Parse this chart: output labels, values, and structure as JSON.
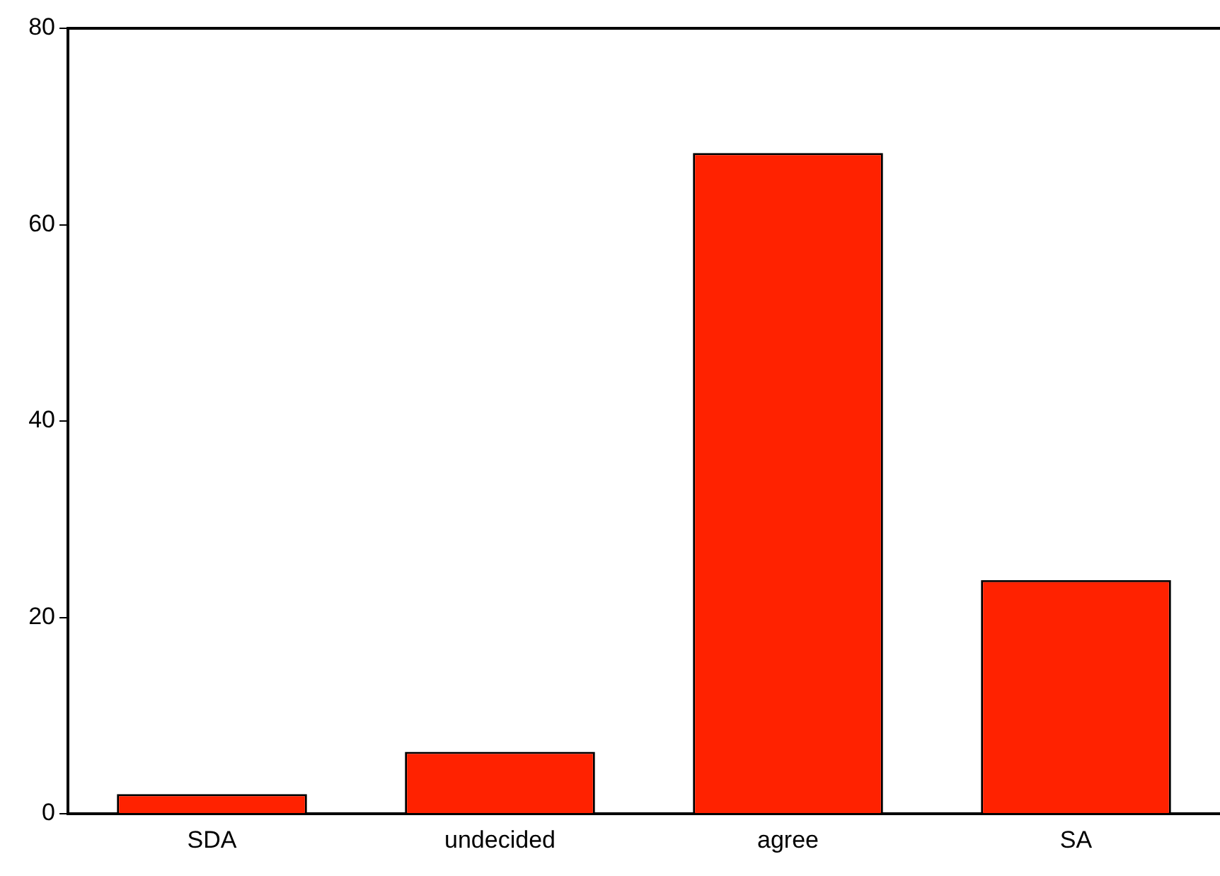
{
  "chart_data": {
    "type": "bar",
    "categories": [
      "SDA",
      "undecided",
      "agree",
      "SA"
    ],
    "values": [
      2.0,
      6.3,
      67.3,
      23.8
    ],
    "color": "#ff2200",
    "ylim": [
      0,
      80
    ],
    "yticks": [
      0,
      20,
      40,
      60,
      80
    ],
    "grid": false,
    "legend": false
  }
}
